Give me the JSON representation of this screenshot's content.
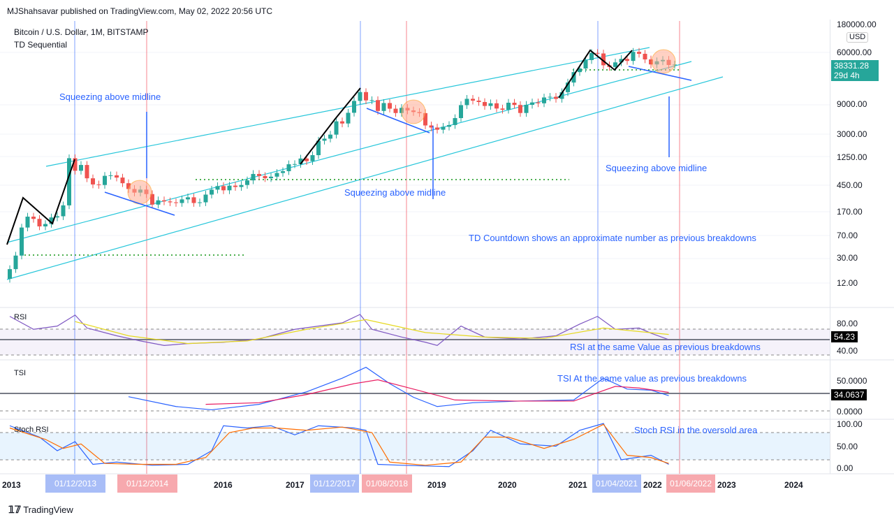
{
  "header": {
    "published": "MJShahsavar published on TradingView.com, May 02, 2022 20:56 UTC"
  },
  "symbol": {
    "title": "Bitcoin / U.S. Dollar, 1M, BITSTAMP",
    "indicator": "TD Sequential"
  },
  "price_axis": {
    "currency": "USD",
    "ticks": [
      "180000.00",
      "60000.00",
      "9000.00",
      "3000.00",
      "1250.00",
      "450.00",
      "170.00",
      "70.00",
      "30.00",
      "12.00"
    ],
    "last_price": "38331.28",
    "countdown": "29d 4h"
  },
  "panes": {
    "rsi": {
      "label": "RSI",
      "ticks": [
        "80.00",
        "40.00"
      ],
      "value": "54.23"
    },
    "tsi": {
      "label": "TSI",
      "ticks": [
        "50.0000",
        "0.0000"
      ],
      "value": "34.0637"
    },
    "stoch": {
      "label": "Stoch RSI",
      "ticks": [
        "100.00",
        "50.00",
        "0.00"
      ]
    }
  },
  "annotations": {
    "squeeze1": "Squeezing above midline",
    "squeeze2": "Squeezing above midline",
    "squeeze3": "Squeezing above midline",
    "td": "TD Countdown shows an approximate number as previous breakdowns",
    "rsi": "RSI at the same Value as previous breakdowns",
    "tsi": "TSI At the same value as previous breakdowns",
    "stoch": "Stoch RSI in the oversold area"
  },
  "time_axis": {
    "labels": [
      "2013",
      "2016",
      "2017",
      "2019",
      "2020",
      "2021",
      "2022",
      "2023",
      "2024"
    ],
    "badges": [
      "01/12/2013",
      "01/12/2014",
      "01/12/2017",
      "01/08/2018",
      "01/04/2021",
      "01/06/2022"
    ]
  },
  "footer": {
    "brand": "TradingView"
  },
  "colors": {
    "up": "#26a69a",
    "down": "#ef5350",
    "channel": "#26c6da",
    "blue": "#2962ff",
    "red": "#f23645"
  },
  "chart_data": {
    "type": "candlestick",
    "interval": "1M",
    "start": "2013-01",
    "closes": [
      20,
      33,
      93,
      139,
      128,
      97,
      106,
      135,
      141,
      211,
      1205,
      757,
      938,
      573,
      457,
      448,
      628,
      640,
      589,
      478,
      386,
      338,
      378,
      320,
      217,
      254,
      244,
      236,
      230,
      263,
      284,
      230,
      236,
      314,
      377,
      430,
      368,
      437,
      416,
      448,
      531,
      673,
      624,
      575,
      609,
      698,
      745,
      963,
      970,
      1190,
      1080,
      1348,
      2300,
      2480,
      2875,
      4700,
      4340,
      6450,
      10000,
      13860,
      10200,
      10300,
      6900,
      9240,
      7500,
      6390,
      7730,
      7030,
      6630,
      6370,
      4040,
      3740,
      3450,
      3850,
      4100,
      5300,
      8550,
      10800,
      10100,
      9600,
      8300,
      9150,
      7550,
      7200,
      9350,
      8600,
      6400,
      8650,
      9450,
      9150,
      11350,
      11650,
      10780,
      13800,
      19700,
      28990,
      33100,
      45200,
      58800,
      57700,
      37300,
      35000,
      41500,
      47100,
      43800,
      61300,
      57000,
      46300,
      38500,
      43200,
      45500,
      37700,
      38331
    ],
    "rsi": [
      [
        0,
        90
      ],
      [
        4,
        70
      ],
      [
        8,
        75
      ],
      [
        11,
        92
      ],
      [
        13,
        72
      ],
      [
        18,
        60
      ],
      [
        22,
        52
      ],
      [
        26,
        45
      ],
      [
        30,
        48
      ],
      [
        36,
        50
      ],
      [
        42,
        55
      ],
      [
        48,
        70
      ],
      [
        56,
        80
      ],
      [
        59,
        93
      ],
      [
        61,
        70
      ],
      [
        66,
        58
      ],
      [
        70,
        50
      ],
      [
        72,
        45
      ],
      [
        76,
        75
      ],
      [
        80,
        58
      ],
      [
        86,
        55
      ],
      [
        92,
        60
      ],
      [
        96,
        78
      ],
      [
        99,
        90
      ],
      [
        102,
        70
      ],
      [
        106,
        72
      ],
      [
        108,
        64
      ],
      [
        111,
        54
      ]
    ],
    "rsi_ma": [
      [
        11,
        82
      ],
      [
        20,
        60
      ],
      [
        30,
        48
      ],
      [
        40,
        52
      ],
      [
        50,
        70
      ],
      [
        60,
        85
      ],
      [
        70,
        65
      ],
      [
        80,
        58
      ],
      [
        90,
        56
      ],
      [
        100,
        72
      ],
      [
        111,
        62
      ]
    ],
    "tsi": [
      [
        20,
        26
      ],
      [
        28,
        8
      ],
      [
        34,
        2
      ],
      [
        42,
        12
      ],
      [
        50,
        35
      ],
      [
        56,
        60
      ],
      [
        60,
        80
      ],
      [
        64,
        50
      ],
      [
        68,
        25
      ],
      [
        72,
        8
      ],
      [
        78,
        15
      ],
      [
        86,
        18
      ],
      [
        95,
        20
      ],
      [
        100,
        60
      ],
      [
        104,
        40
      ],
      [
        108,
        38
      ],
      [
        111,
        28
      ]
    ],
    "tsi_signal": [
      [
        33,
        12
      ],
      [
        42,
        15
      ],
      [
        50,
        30
      ],
      [
        58,
        50
      ],
      [
        62,
        57
      ],
      [
        68,
        40
      ],
      [
        75,
        20
      ],
      [
        85,
        18
      ],
      [
        95,
        18
      ],
      [
        102,
        45
      ],
      [
        106,
        42
      ],
      [
        111,
        34
      ]
    ],
    "stoch_k": [
      [
        0,
        95
      ],
      [
        5,
        70
      ],
      [
        8,
        40
      ],
      [
        11,
        60
      ],
      [
        14,
        10
      ],
      [
        18,
        15
      ],
      [
        24,
        8
      ],
      [
        30,
        10
      ],
      [
        34,
        40
      ],
      [
        36,
        95
      ],
      [
        40,
        90
      ],
      [
        44,
        95
      ],
      [
        48,
        75
      ],
      [
        52,
        95
      ],
      [
        58,
        90
      ],
      [
        60,
        85
      ],
      [
        62,
        10
      ],
      [
        66,
        8
      ],
      [
        74,
        5
      ],
      [
        78,
        40
      ],
      [
        81,
        85
      ],
      [
        86,
        55
      ],
      [
        92,
        50
      ],
      [
        96,
        85
      ],
      [
        100,
        100
      ],
      [
        103,
        20
      ],
      [
        108,
        30
      ],
      [
        111,
        10
      ]
    ],
    "stoch_d": [
      [
        0,
        90
      ],
      [
        6,
        65
      ],
      [
        9,
        45
      ],
      [
        12,
        55
      ],
      [
        16,
        12
      ],
      [
        22,
        10
      ],
      [
        28,
        10
      ],
      [
        33,
        25
      ],
      [
        37,
        80
      ],
      [
        41,
        90
      ],
      [
        45,
        90
      ],
      [
        50,
        85
      ],
      [
        56,
        92
      ],
      [
        61,
        80
      ],
      [
        64,
        15
      ],
      [
        70,
        8
      ],
      [
        76,
        15
      ],
      [
        80,
        70
      ],
      [
        84,
        70
      ],
      [
        90,
        45
      ],
      [
        95,
        65
      ],
      [
        100,
        98
      ],
      [
        104,
        30
      ],
      [
        108,
        25
      ],
      [
        111,
        12
      ]
    ]
  }
}
